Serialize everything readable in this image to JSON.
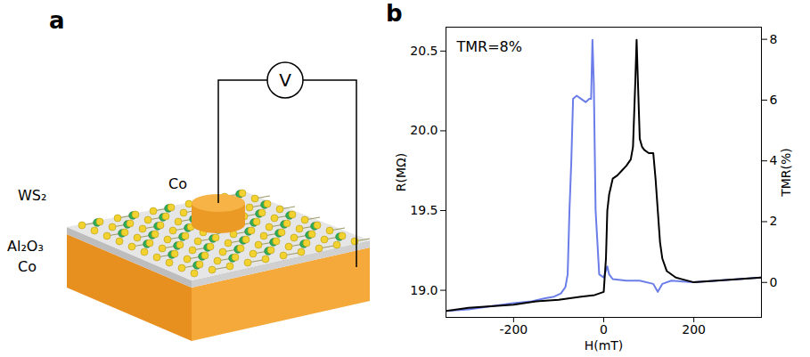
{
  "diagram": {
    "panel": "a",
    "labels": {
      "top_electrode": "Co",
      "tunnel_layer": "WS₂",
      "oxide_layer": "Al₂O₃",
      "bottom_electrode": "Co",
      "meter": "V"
    }
  },
  "chart_data": {
    "type": "line",
    "panel": "b",
    "annotation": "TMR=8%",
    "x_label": "H(mT)",
    "y_label": "R(MΩ)",
    "y2_label": "TMR(%)",
    "xlim": [
      -350,
      350
    ],
    "xticks": [
      -200,
      0,
      200
    ],
    "ylim": [
      18.83,
      20.65
    ],
    "yticks": [
      {
        "value": 19.0,
        "label": "19.0"
      },
      19.5,
      {
        "value": 20.0,
        "label": "20.0"
      },
      20.5
    ],
    "y2lim": [
      -1.15,
      8.4
    ],
    "y2ticks": [
      0,
      2,
      4,
      6,
      8
    ],
    "grid": false,
    "series": [
      {
        "color": "#6b7de8",
        "x": [
          350,
          300,
          250,
          200,
          150,
          130,
          120,
          110,
          80,
          50,
          20,
          12,
          8,
          0,
          -10,
          -18,
          -22,
          -25,
          -28,
          -32,
          -40,
          -50,
          -60,
          -68,
          -72,
          -76,
          -80,
          -85,
          -95,
          -110,
          -130,
          -160,
          -200,
          -250,
          -300,
          -350
        ],
        "values": [
          19.08,
          19.07,
          19.06,
          19.05,
          19.06,
          19.04,
          18.99,
          19.04,
          19.06,
          19.06,
          19.07,
          19.1,
          19.15,
          19.08,
          19.1,
          19.5,
          20.3,
          20.57,
          20.2,
          20.2,
          20.18,
          20.2,
          20.22,
          20.2,
          19.8,
          19.5,
          19.1,
          19.02,
          18.98,
          18.96,
          18.95,
          18.93,
          18.92,
          18.9,
          18.88,
          18.87
        ]
      },
      {
        "color": "#000000",
        "x": [
          -350,
          -300,
          -250,
          -200,
          -150,
          -100,
          -50,
          -20,
          0,
          5,
          8,
          12,
          20,
          30,
          40,
          50,
          60,
          65,
          70,
          73,
          76,
          80,
          85,
          90,
          100,
          110,
          115,
          120,
          125,
          130,
          140,
          160,
          200,
          250,
          300,
          350
        ],
        "values": [
          18.87,
          18.89,
          18.9,
          18.91,
          18.93,
          18.94,
          18.96,
          18.97,
          18.99,
          19.2,
          19.5,
          19.6,
          19.7,
          19.72,
          19.75,
          19.78,
          19.82,
          19.9,
          20.3,
          20.57,
          20.3,
          19.95,
          19.9,
          19.88,
          19.86,
          19.86,
          19.7,
          19.5,
          19.3,
          19.2,
          19.12,
          19.08,
          19.05,
          19.06,
          19.07,
          19.08
        ]
      }
    ]
  }
}
